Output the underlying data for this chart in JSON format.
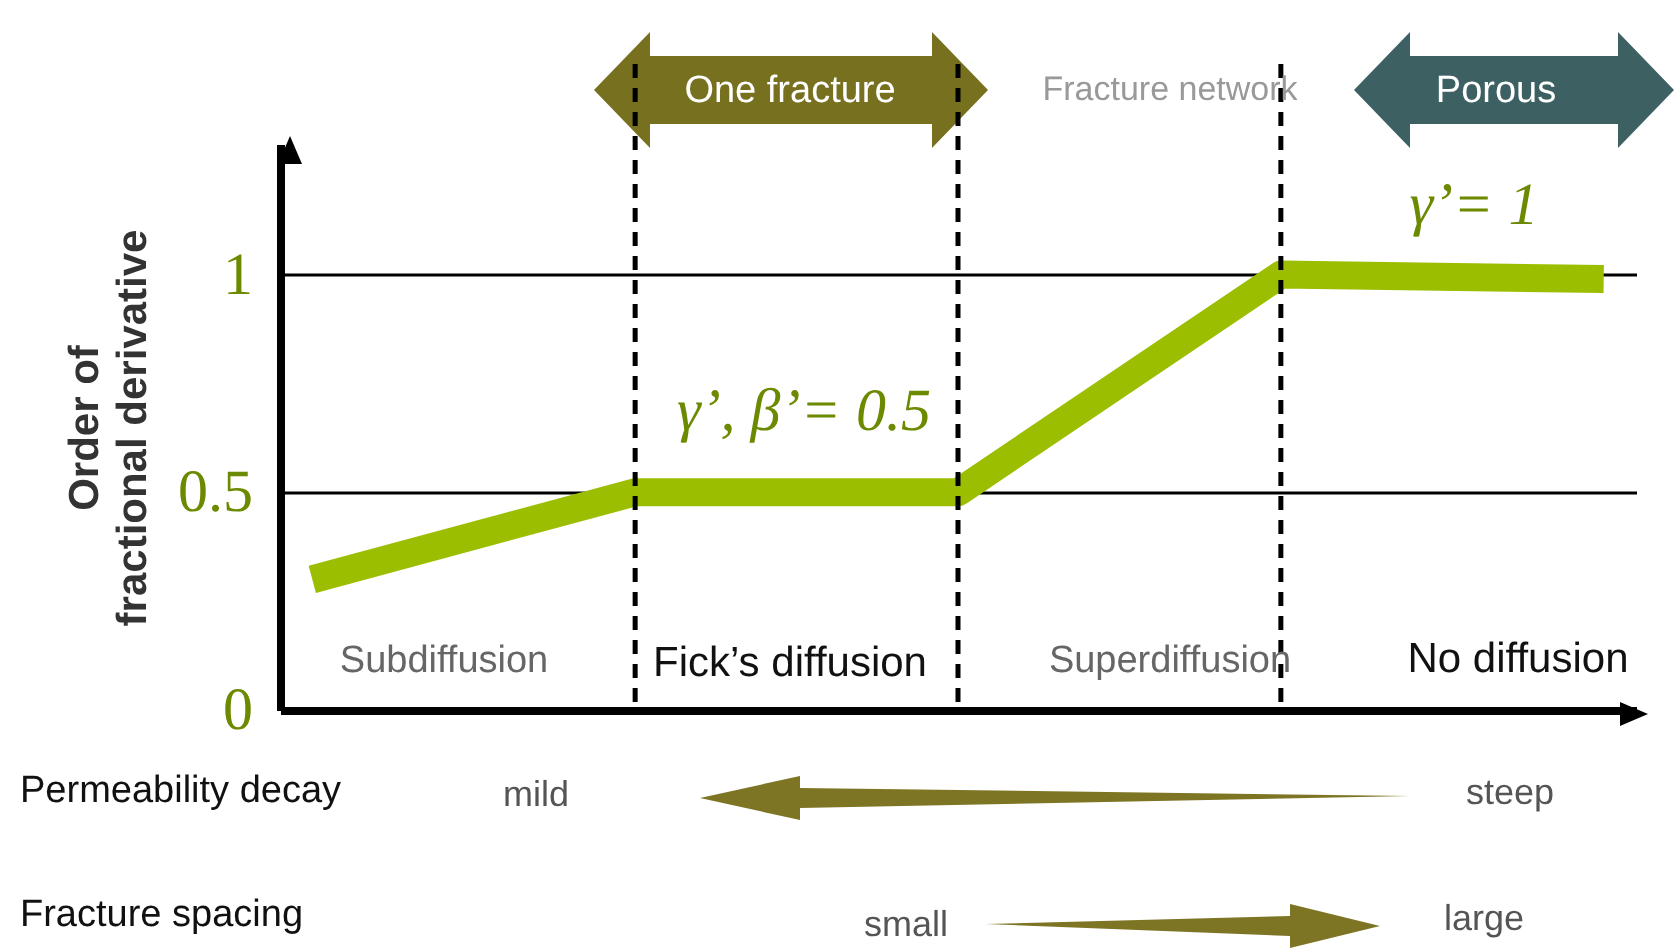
{
  "chart_data": {
    "type": "line",
    "ylabel": "Order of fractional derivative",
    "categories": [
      null,
      null,
      null,
      null,
      null
    ],
    "series": [
      {
        "color": "#9bbf00",
        "values": [
          0.3,
          0.5,
          0.5,
          1,
          0.99
        ]
      }
    ],
    "ylim": [
      0,
      1.3
    ],
    "yticks": [
      0,
      0.5,
      1
    ],
    "grid": true,
    "tick_labels": "y",
    "annotations": [
      "One fracture",
      "Fracture network",
      "Porous",
      "γ’, β’= 0.5",
      "γ’= 1",
      "Subdiffusion",
      "Fick’s diffusion",
      "Superdiffusion",
      "No diffusion",
      "Permeability decay",
      "mild",
      "steep",
      "Fracture spacing",
      "small",
      "large"
    ]
  }
}
